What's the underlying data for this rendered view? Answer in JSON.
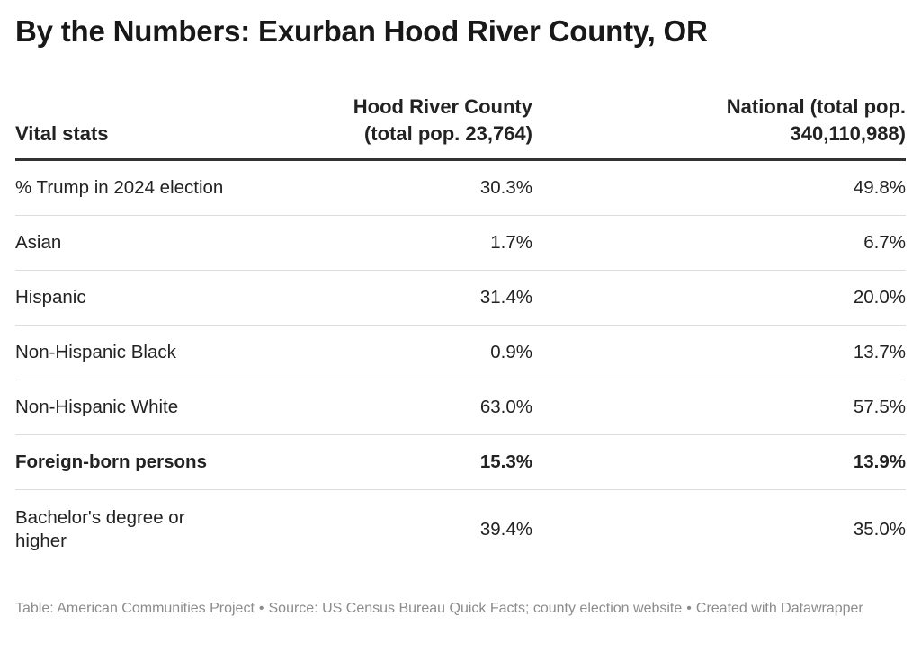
{
  "title": "By the Numbers: Exurban Hood River County, OR",
  "headers": {
    "col1": "Vital stats",
    "col2_line1": "Hood River County",
    "col2_line2": "(total pop. 23,764)",
    "col3_line1": "National (total pop.",
    "col3_line2": "340,110,988)"
  },
  "chart_data": {
    "type": "table",
    "title": "By the Numbers: Exurban Hood River County, OR",
    "columns": [
      "Vital stats",
      "Hood River County (total pop. 23,764)",
      "National (total pop. 340,110,988)"
    ],
    "rows": [
      {
        "label": "% Trump in 2024 election",
        "county": "30.3%",
        "national": "49.8%"
      },
      {
        "label": "Asian",
        "county": "1.7%",
        "national": "6.7%"
      },
      {
        "label": "Hispanic",
        "county": "31.4%",
        "national": "20.0%"
      },
      {
        "label": "Non-Hispanic Black",
        "county": "0.9%",
        "national": "13.7%"
      },
      {
        "label": "Non-Hispanic White",
        "county": "63.0%",
        "national": "57.5%"
      },
      {
        "label": "Foreign-born persons",
        "county": "15.3%",
        "national": "13.9%",
        "bold": true
      },
      {
        "label": "Bachelor's degree or higher",
        "county": "39.4%",
        "national": "35.0%"
      }
    ]
  },
  "footer": {
    "table_credit": "Table: American Communities Project",
    "source": "Source: US Census Bureau Quick Facts; county election website",
    "created": "Created with Datawrapper",
    "separator": "•"
  },
  "colors": {
    "text": "#222222",
    "footer": "#8c8c8c",
    "header_rule": "#333333",
    "row_rule": "#dddddd"
  }
}
